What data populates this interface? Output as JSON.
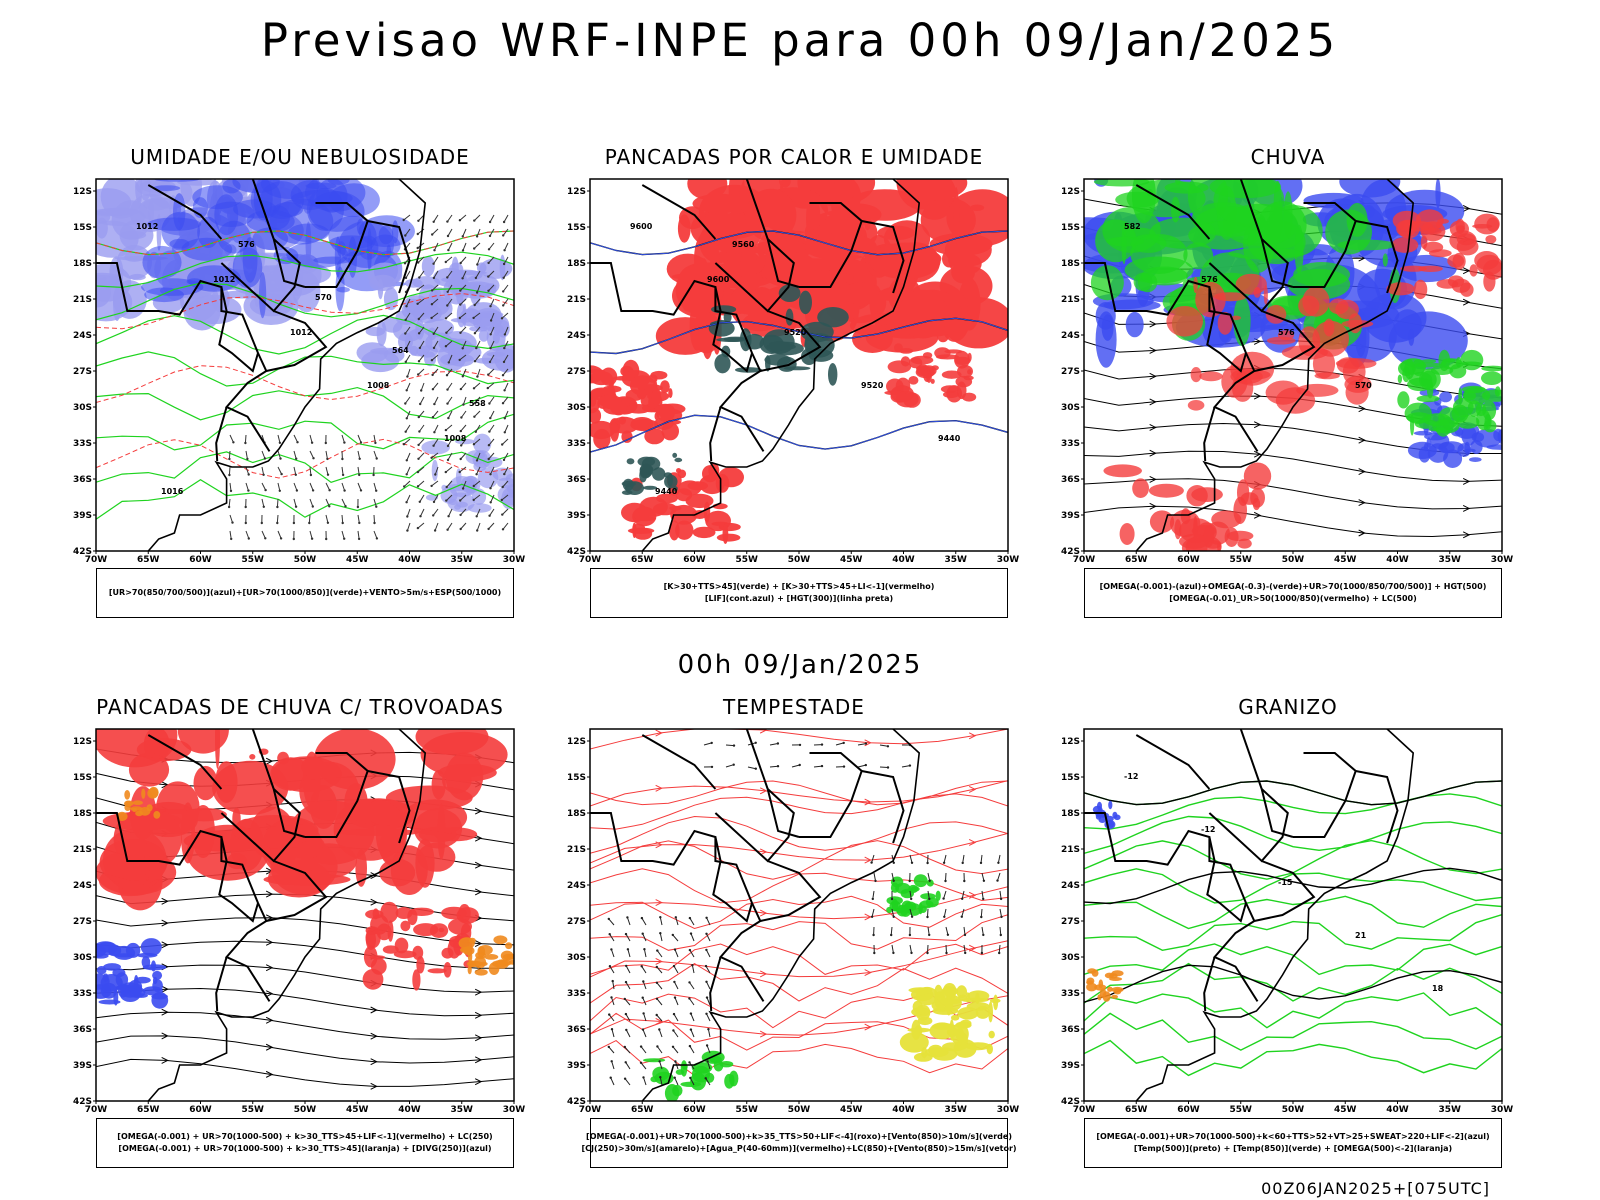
{
  "main_title": "Previsao WRF-INPE  para 00h 09/Jan/2025",
  "mid_title": "00h 09/Jan/2025",
  "footer": "00Z06JAN2025+[075UTC]",
  "lat_labels": [
    "12S",
    "15S",
    "18S",
    "21S",
    "24S",
    "27S",
    "30S",
    "33S",
    "36S",
    "39S",
    "42S"
  ],
  "lon_labels": [
    "70W",
    "65W",
    "60W",
    "55W",
    "50W",
    "45W",
    "40W",
    "35W",
    "30W"
  ],
  "colors": {
    "blue": "#3b4bf0",
    "lightblue": "#9a9cf0",
    "green": "#1fd31f",
    "red": "#f43c3c",
    "orange": "#f08a1e",
    "darkteal": "#2f5656",
    "yellow": "#e6e23a"
  },
  "panels": [
    {
      "title": "UMIDADE E/OU NEBULOSIDADE",
      "legend": [
        "[UR>70(850/700/500)](azul)+[UR>70(1000/850)](verde)+VENTO>5m/s+ESP(500/1000)"
      ],
      "contour_labels": [
        "1012",
        "1012",
        "1012",
        "1008",
        "1008",
        "1016",
        "576",
        "570",
        "564",
        "558"
      ]
    },
    {
      "title": "PANCADAS POR CALOR E UMIDADE",
      "legend": [
        "[K>30+TTS>45](verde) + [K>30+TTS>45+LI<-1](vermelho)",
        "[LIF](cont.azul) + [HGT(300)](linha preta)"
      ],
      "contour_labels": [
        "9600",
        "9600",
        "9520",
        "9520",
        "9440",
        "9440",
        "9560"
      ]
    },
    {
      "title": "CHUVA",
      "legend": [
        "[OMEGA(-0.001)-(azul)+OMEGA(-0.3)-(verde)+UR>70(1000/850/700/500)] + HGT(500)",
        "[OMEGA(-0.01)_UR>50(1000/850)(vermelho) + LC(500)"
      ],
      "contour_labels": [
        "582",
        "576",
        "576",
        "570"
      ]
    },
    {
      "title": "PANCADAS DE CHUVA C/ TROVOADAS",
      "legend": [
        "[OMEGA(-0.001) + UR>70(1000-500) + k>30_TTS>45+LIF<-1](vermelho) + LC(250)",
        "[OMEGA(-0.001) + UR>70(1000-500) + k>30_TTS>45](laranja) + [DIVG(250)](azul)"
      ],
      "contour_labels": []
    },
    {
      "title": "TEMPESTADE",
      "legend": [
        "[OMEGA(-0.001)+UR>70(1000-500)+k>35_TTS>50+LIF<-4](roxo)+[Vento(850)>10m/s](verde)",
        "[CJ(250)>30m/s](amarelo)+[Agua_P(40-60mm)](vermelho)+LC(850)+[Vento(850)>15m/s](vetor)"
      ],
      "contour_labels": []
    },
    {
      "title": "GRANIZO",
      "legend": [
        "[OMEGA(-0.001)+UR>70(1000-500)+k<60+TTS>52+VT>25+SWEAT>220+LIF<-2](azul)",
        "[Temp(500)](preto) + [Temp(850)](verde) + [OMEGA(500)<-2](laranja)"
      ],
      "contour_labels": [
        "-12",
        "-12",
        "-15",
        "21",
        "18"
      ]
    }
  ]
}
